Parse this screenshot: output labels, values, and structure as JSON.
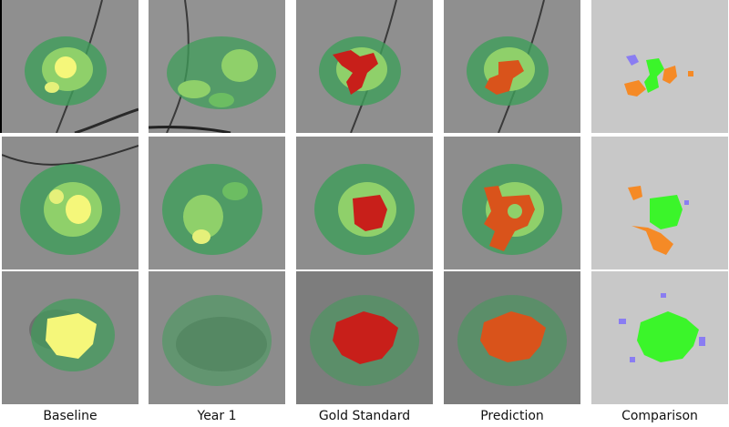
{
  "columns": [
    {
      "key": "baseline",
      "label": "Baseline"
    },
    {
      "key": "year1",
      "label": "Year 1"
    },
    {
      "key": "gold",
      "label": "Gold Standard"
    },
    {
      "key": "prediction",
      "label": "Prediction"
    },
    {
      "key": "comparison",
      "label": "Comparison"
    }
  ],
  "colors": {
    "heat_low": "#3f9d5a",
    "heat_mid": "#8fd06a",
    "heat_high": "#f5f77a",
    "gold_mask": "#c81f1a",
    "prediction_mask": "#d9531b",
    "comparison_green": "#3bf52a",
    "comparison_orange": "#f58a26",
    "comparison_purple": "#8a7df2",
    "comparison_bg": "#c8c8c8"
  }
}
